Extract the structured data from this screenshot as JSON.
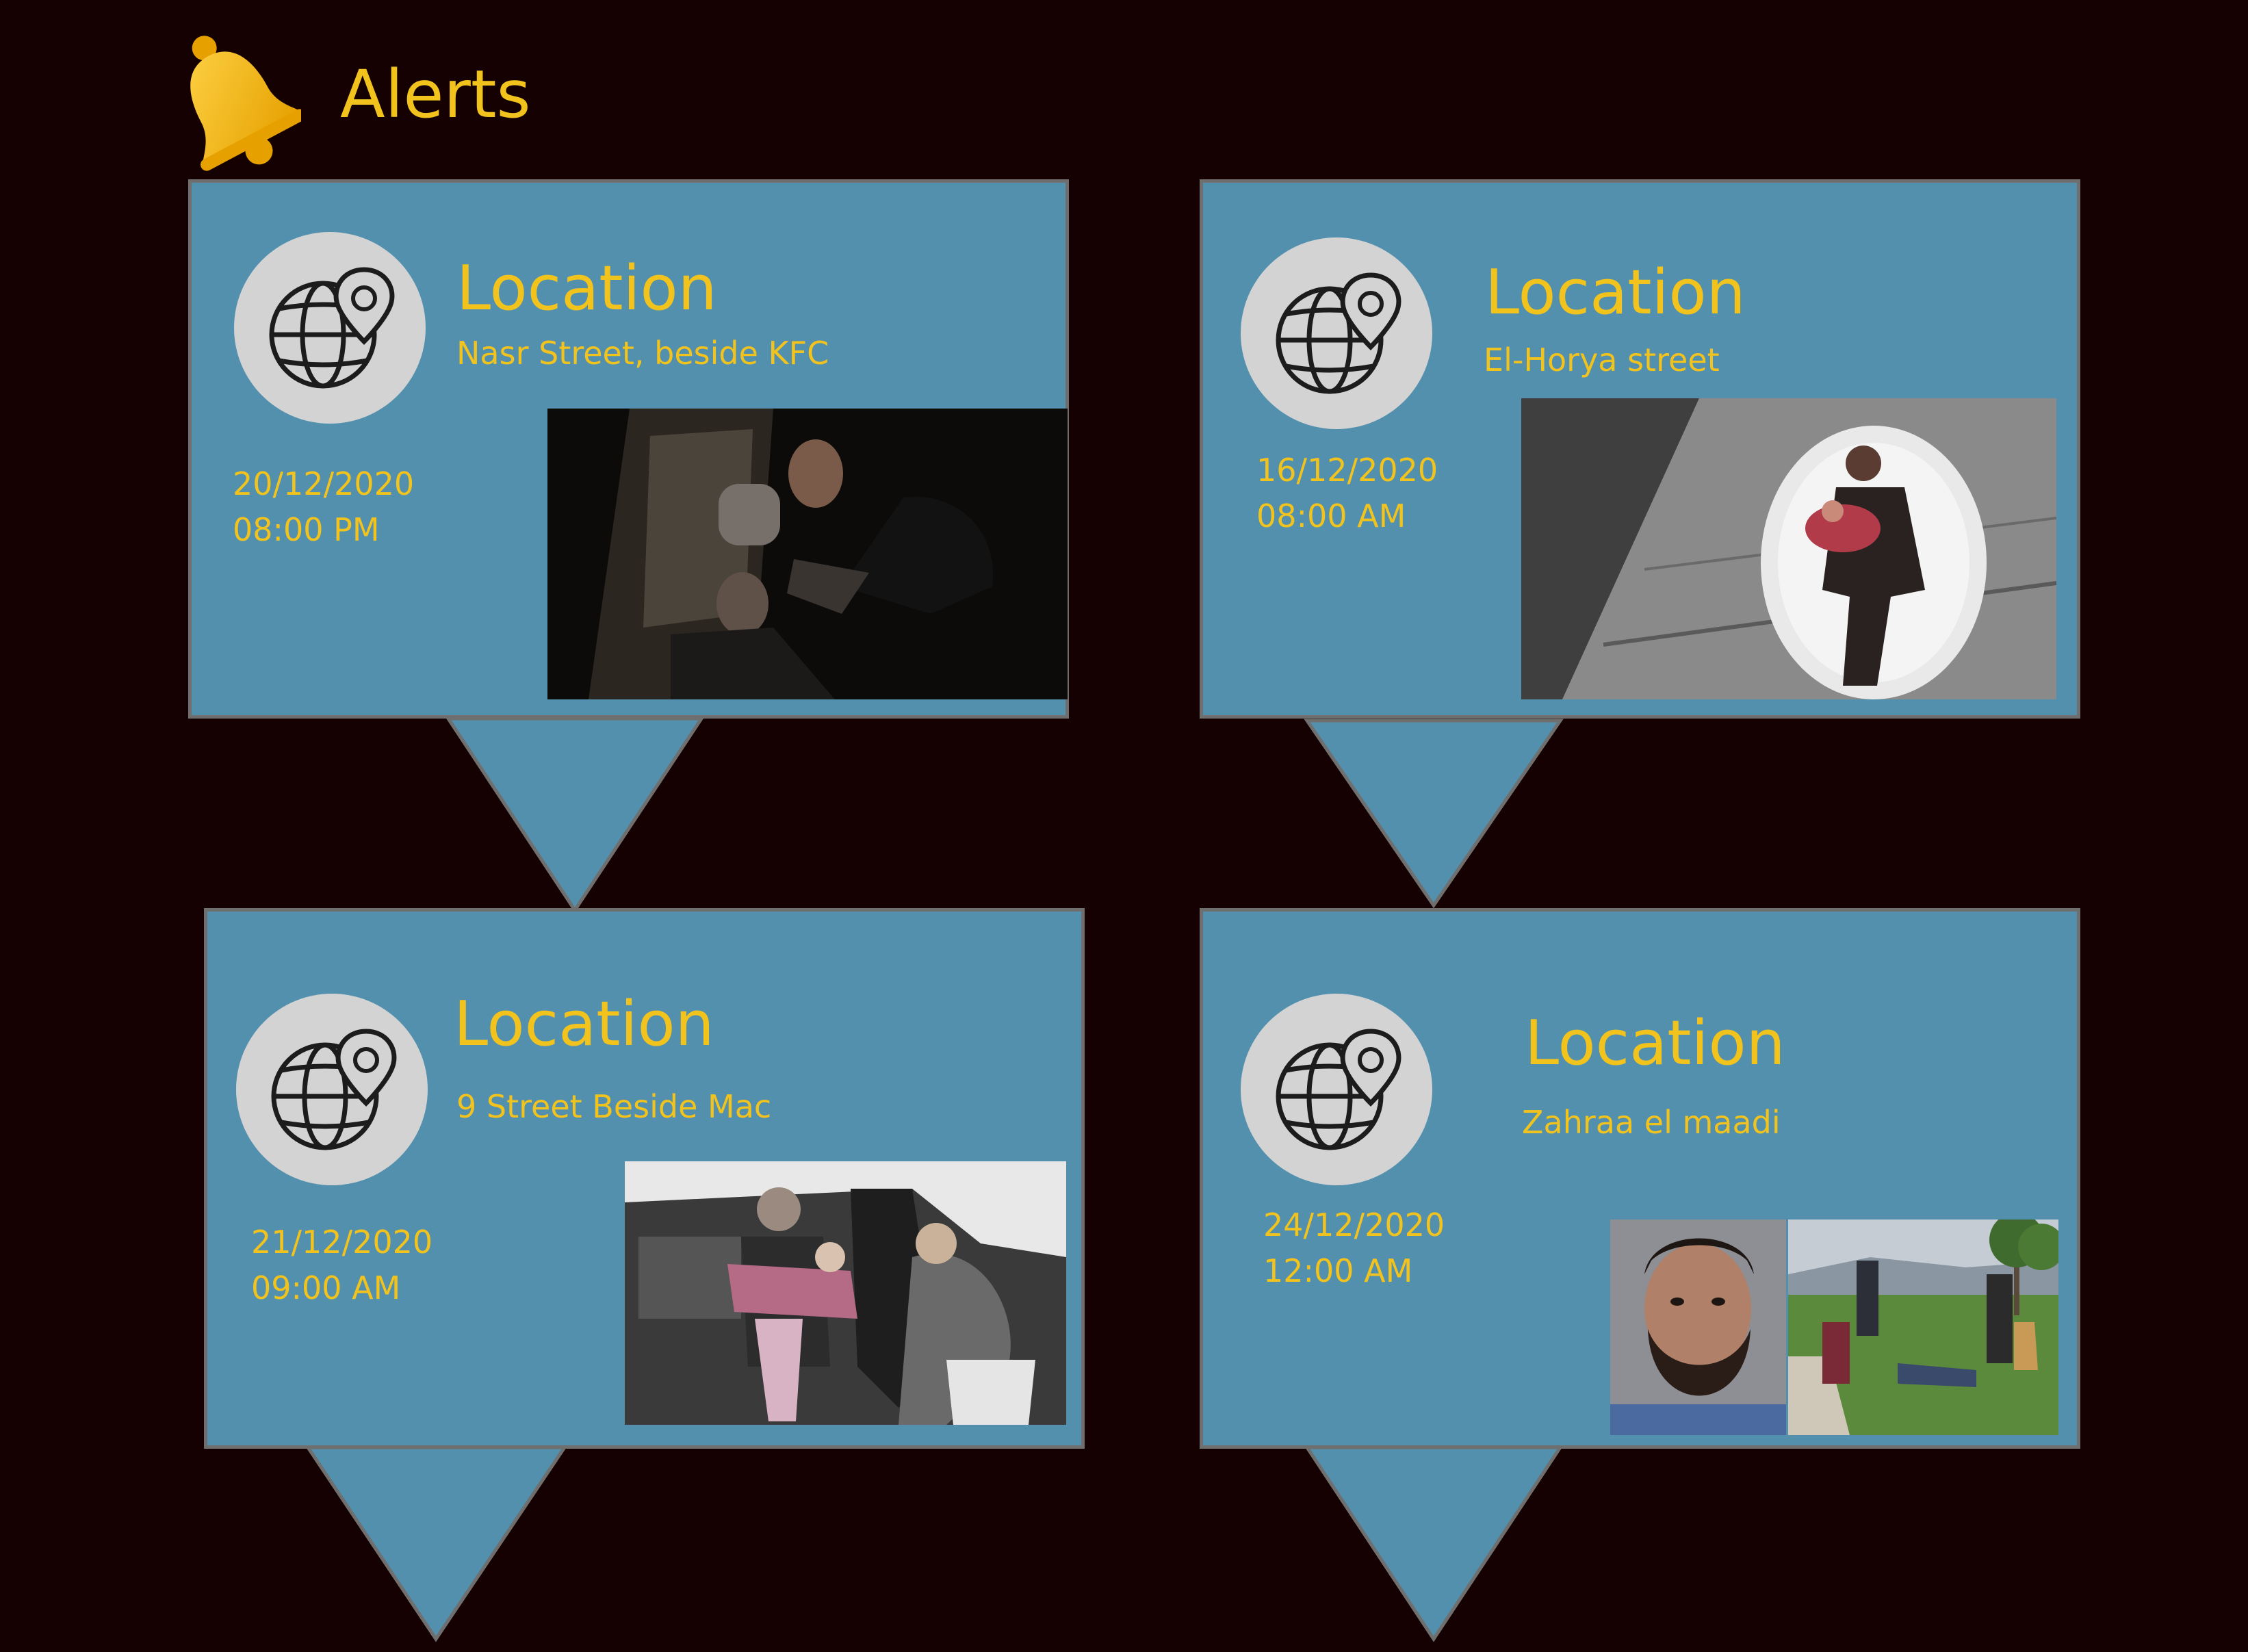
{
  "app": {
    "title": "Alerts",
    "icon": "bell-icon",
    "accent": "#f2c31d",
    "background": "#150002"
  },
  "alerts": [
    {
      "title": "Location",
      "address": "Nasr Street, beside KFC",
      "date": "20/12/2020",
      "time": "08:00 PM",
      "icon": "globe-location-pin-icon"
    },
    {
      "title": "Location",
      "address": "El-Horya street",
      "date": "16/12/2020",
      "time": "08:00 AM",
      "icon": "globe-location-pin-icon"
    },
    {
      "title": "Location",
      "address": "9 Street Beside Mac",
      "date": "21/12/2020",
      "time": "09:00 AM",
      "icon": "globe-location-pin-icon"
    },
    {
      "title": "Location",
      "address": "Zahraa el maadi",
      "date": "24/12/2020",
      "time": "12:00 AM",
      "icon": "globe-location-pin-icon"
    }
  ],
  "colors": {
    "card": "#5290ae",
    "card_border": "#6f6f6f",
    "icon_circle": "#d3d3d3"
  }
}
